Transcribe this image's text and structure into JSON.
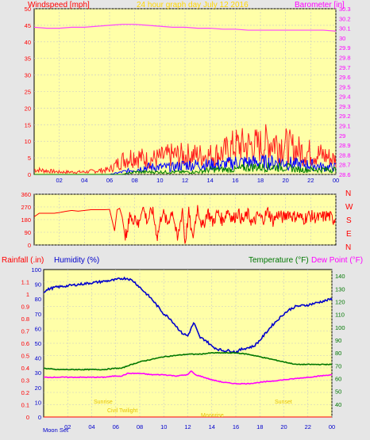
{
  "chart_data": [
    {
      "type": "line",
      "title": "24 hour graph day  July 12 2016",
      "ylabel_left": "Windspeed [mph]",
      "ylabel_right": "Barometer [in]",
      "xlim": [
        0,
        24
      ],
      "ylim_left": [
        0,
        50
      ],
      "ylim_right": [
        28.6,
        30.3
      ],
      "x_ticks": [
        "02",
        "04",
        "06",
        "08",
        "10",
        "12",
        "14",
        "16",
        "18",
        "20",
        "22",
        "00"
      ],
      "y_ticks_left": [
        "0",
        "5",
        "10",
        "15",
        "20",
        "25",
        "30",
        "35",
        "40",
        "45",
        "50"
      ],
      "y_ticks_right": [
        "28.6",
        "28.7",
        "28.8",
        "28.9",
        "29",
        "29.1",
        "29.2",
        "29.3",
        "29.4",
        "29.5",
        "29.6",
        "29.7",
        "29.8",
        "29.9",
        "30",
        "30.1",
        "30.2",
        "30.3"
      ],
      "grid": true,
      "series": [
        {
          "name": "Barometer",
          "color": "#ff44ff",
          "axis": "right",
          "x": [
            0,
            1,
            2,
            3,
            4,
            5,
            6,
            7,
            8,
            9,
            10,
            11,
            12,
            13,
            14,
            15,
            16,
            17,
            18,
            19,
            20,
            21,
            22,
            23,
            24
          ],
          "values": [
            30.11,
            30.1,
            30.1,
            30.11,
            30.11,
            30.12,
            30.13,
            30.14,
            30.14,
            30.13,
            30.12,
            30.11,
            30.11,
            30.1,
            30.1,
            30.09,
            30.09,
            30.08,
            30.08,
            30.08,
            30.08,
            30.08,
            30.08,
            30.08,
            30.07
          ]
        },
        {
          "name": "Gust",
          "color": "#ff2020",
          "axis": "left",
          "x": [
            0,
            2,
            4,
            6,
            7,
            8,
            9,
            10,
            11,
            12,
            13,
            14,
            15,
            16,
            17,
            18,
            19,
            20,
            21,
            22,
            23,
            24
          ],
          "values": [
            2,
            1,
            1,
            2,
            6,
            8,
            6,
            7,
            8,
            8,
            8,
            8,
            9,
            12,
            12,
            12,
            14,
            12,
            10,
            9,
            8,
            6
          ]
        },
        {
          "name": "Wind",
          "color": "#0000ff",
          "axis": "left",
          "x": [
            0,
            2,
            4,
            6,
            7,
            8,
            9,
            10,
            11,
            12,
            13,
            14,
            15,
            16,
            17,
            18,
            19,
            20,
            21,
            22,
            23,
            24
          ],
          "values": [
            0,
            0,
            0,
            0,
            1,
            2,
            3,
            3,
            3,
            4,
            4,
            4,
            4,
            5,
            5,
            5,
            5,
            5,
            4,
            4,
            3,
            3
          ]
        },
        {
          "name": "Wind Average",
          "color": "#008000",
          "axis": "left",
          "x": [
            0,
            2,
            4,
            6,
            7,
            8,
            9,
            10,
            11,
            12,
            13,
            14,
            15,
            16,
            17,
            18,
            19,
            20,
            21,
            22,
            23,
            24
          ],
          "values": [
            0,
            0,
            0,
            0,
            0,
            1,
            1,
            1,
            1,
            1,
            1,
            2,
            2,
            2,
            3,
            3,
            3,
            3,
            2,
            2,
            2,
            2
          ]
        }
      ]
    },
    {
      "type": "line",
      "ylabel_right_letters": [
        "N",
        "W",
        "S",
        "E",
        "N"
      ],
      "xlim": [
        0,
        24
      ],
      "ylim": [
        0,
        360
      ],
      "y_ticks": [
        "0",
        "90",
        "180",
        "270",
        "360"
      ],
      "grid": true,
      "series": [
        {
          "name": "Wind Direction",
          "color": "#ff0000",
          "x": [
            0,
            0.4,
            1,
            1.6,
            2,
            2.6,
            3,
            3.5,
            4,
            4.5,
            5,
            5.5,
            6,
            6.4,
            6.6,
            6.8,
            7,
            7.2,
            7.4,
            7.6,
            7.8,
            8,
            8.3,
            8.6,
            9,
            9.4,
            9.8,
            10.2,
            10.6,
            11,
            11.4,
            11.8,
            12,
            12.3,
            12.6,
            13,
            13.4,
            13.8,
            14.2,
            14.6,
            15,
            15.4,
            15.8,
            16.2,
            16.6,
            17,
            17.4,
            17.8,
            18.2,
            18.6,
            19,
            19.4,
            19.8,
            20.2,
            20.6,
            21,
            21.4,
            21.8,
            22.2,
            22.6,
            23,
            23.4,
            23.8,
            24
          ],
          "values": [
            200,
            225,
            225,
            225,
            230,
            240,
            245,
            240,
            245,
            250,
            250,
            250,
            252,
            100,
            250,
            260,
            200,
            80,
            60,
            240,
            150,
            220,
            130,
            280,
            170,
            250,
            60,
            240,
            150,
            250,
            30,
            260,
            10,
            230,
            40,
            270,
            120,
            240,
            160,
            230,
            170,
            250,
            180,
            230,
            170,
            220,
            150,
            210,
            180,
            240,
            170,
            220,
            190,
            230,
            200,
            210,
            180,
            210,
            200,
            190,
            200,
            210,
            180,
            195
          ]
        }
      ]
    },
    {
      "type": "line",
      "xlabel_moon": "Moon Set",
      "ylabel_left_outer": "Rainfall (.in)",
      "ylabel_left_inner": "Humidity (%)",
      "ylabel_right_a": "Temperature (°F)",
      "ylabel_right_b": "Dew Point (°F)",
      "xlim": [
        0,
        24
      ],
      "ylim_rain": [
        0,
        1.2
      ],
      "ylim_humidity": [
        0,
        100
      ],
      "ylim_temp": [
        30,
        145
      ],
      "rain_ticks": [
        "0",
        "0.1",
        "0.2",
        "0.3",
        "0.4",
        "0.5",
        "0.6",
        "0.7",
        "0.8",
        "0.9",
        "1",
        "1.1"
      ],
      "humidity_ticks": [
        "0",
        "10",
        "20",
        "30",
        "40",
        "50",
        "60",
        "70",
        "80",
        "90",
        "100"
      ],
      "temp_ticks": [
        "40",
        "50",
        "60",
        "70",
        "80",
        "90",
        "100",
        "110",
        "120",
        "130",
        "140"
      ],
      "x_ticks": [
        "02",
        "04",
        "06",
        "08",
        "10",
        "12",
        "14",
        "16",
        "18",
        "20",
        "22",
        "00"
      ],
      "grid": true,
      "annotations": [
        "Sunrise",
        "Civil Twilight",
        "Sunset",
        "Moonrise"
      ],
      "series": [
        {
          "name": "Humidity",
          "color": "#0000cc",
          "axis": "humidity",
          "x": [
            0,
            0.5,
            1,
            2,
            3,
            4,
            5,
            6,
            6.5,
            7,
            7.5,
            8,
            8.5,
            9,
            9.5,
            10,
            10.5,
            11,
            11.5,
            12,
            12.5,
            13,
            13.5,
            14,
            14.5,
            15,
            15.5,
            16,
            16.5,
            17,
            17.5,
            18,
            18.5,
            19,
            19.5,
            20,
            20.5,
            21,
            22,
            23,
            24
          ],
          "values": [
            85,
            87,
            88,
            89,
            90,
            91,
            92,
            93,
            94,
            94,
            92,
            88,
            84,
            80,
            75,
            70,
            67,
            62,
            57,
            55,
            64,
            54,
            52,
            48,
            46,
            45,
            45,
            44,
            46,
            47,
            48,
            52,
            57,
            62,
            66,
            70,
            73,
            75,
            76,
            78,
            80
          ]
        },
        {
          "name": "Temperature",
          "color": "#007700",
          "axis": "temp",
          "x": [
            0,
            1,
            2,
            3,
            4,
            5,
            6,
            6.5,
            7,
            8,
            9,
            10,
            11,
            12,
            13,
            14,
            15,
            16,
            17,
            18,
            19,
            20,
            21,
            22,
            23,
            24
          ],
          "values": [
            68,
            67,
            67,
            67,
            67,
            67,
            68,
            68,
            70,
            73,
            75,
            77,
            78,
            79,
            79,
            80,
            80,
            80,
            79,
            77,
            75,
            73,
            71,
            71,
            71,
            71
          ]
        },
        {
          "name": "Dew Point",
          "color": "#ff00ff",
          "axis": "temp",
          "x": [
            0,
            1,
            2,
            3,
            4,
            5,
            6,
            6.5,
            7,
            8,
            9,
            10,
            11,
            12,
            12.3,
            12.6,
            13,
            14,
            15,
            16,
            17,
            18,
            19,
            20,
            21,
            22,
            23,
            24
          ],
          "values": [
            61,
            61,
            61,
            61,
            61,
            61,
            62,
            62,
            64,
            64,
            63,
            63,
            62,
            63,
            66,
            63,
            62,
            59,
            57,
            56,
            56,
            57,
            58,
            59,
            60,
            61,
            62,
            63
          ]
        },
        {
          "name": "Rainfall",
          "color": "#ff0000",
          "axis": "rain",
          "x": [
            0,
            24
          ],
          "values": [
            0,
            0
          ]
        }
      ]
    }
  ]
}
